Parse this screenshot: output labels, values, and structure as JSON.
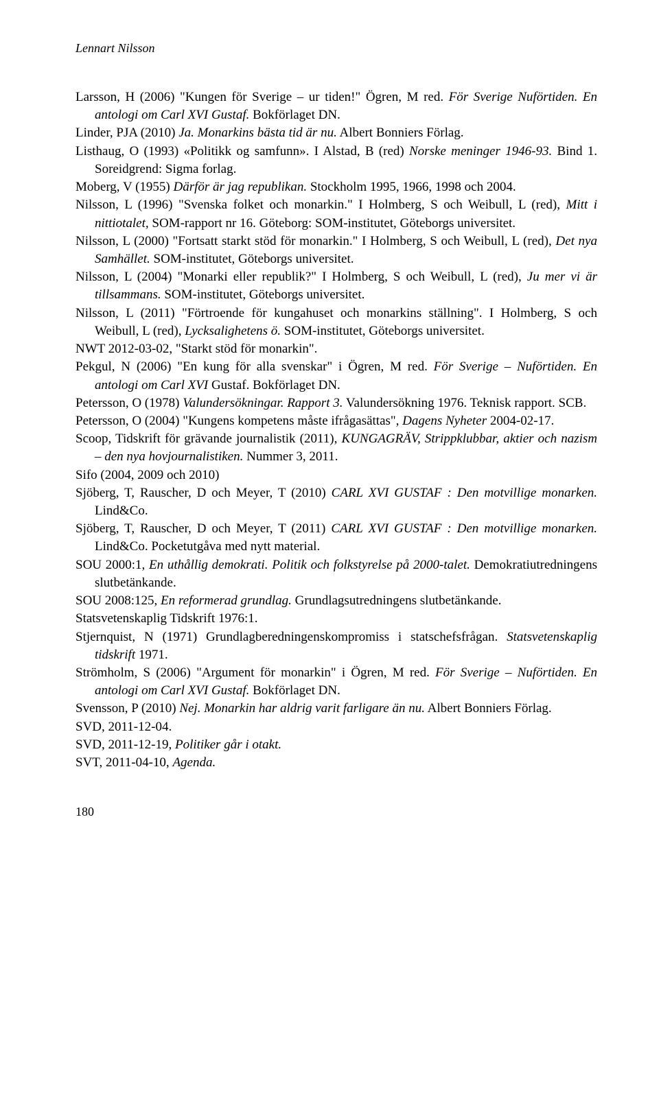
{
  "running_head": "Lennart Nilsson",
  "page_number": "180",
  "refs": [
    "Larsson, H (2006) \"Kungen för Sverige – ur tiden!\" Ögren, M red. <em>För Sverige Nuförtiden. En antologi om Carl XVI Gustaf.</em> Bokförlaget DN.",
    "Linder, PJA (2010) <em>Ja. Monarkins bästa tid är nu.</em> Albert Bonniers Förlag.",
    "Listhaug, O (1993) «Politikk og samfunn». I Alstad, B (red) <em>Norske meninger 1946-93.</em> Bind 1. Soreidgrend: Sigma forlag.",
    "Moberg, V (1955) <em>Därför är jag republikan.</em> Stockholm 1995, 1966, 1998 och 2004.",
    "Nilsson, L (1996) \"Svenska folket och monarkin.\" I Holmberg, S och Weibull, L (red), <em>Mitt i nittiotalet,</em> SOM-rapport nr 16. Göteborg: SOM-institutet, Göteborgs universitet.",
    "Nilsson, L (2000) \"Fortsatt starkt stöd för monarkin.\" I Holmberg, S och Weibull, L (red), <em>Det nya Samhället.</em> SOM-institutet, Göteborgs universitet.",
    "Nilsson, L (2004) \"Monarki eller republik?\" I Holmberg, S och Weibull, L (red), <em>Ju mer vi är tillsammans.</em> SOM-institutet, Göteborgs universitet.",
    "Nilsson, L (2011) \"Förtroende för kungahuset och monarkins ställning\". I Holmberg, S och Weibull, L (red), <em>Lycksalighetens ö.</em> SOM-institutet, Göteborgs universitet.",
    "NWT 2012-03-02, \"Starkt stöd för monarkin\".",
    "Pekgul, N (2006) \"En kung för alla svenskar\" i Ögren, M red. <em>För Sverige – Nuförtiden. En antologi om Carl XVI</em> Gustaf. Bokförlaget DN.",
    "Petersson, O (1978) <em>Valundersökningar. Rapport 3.</em> Valundersökning 1976. Teknisk rapport. SCB.",
    "Petersson, O (2004) \"Kungens kompetens måste ifrågasättas\", <em>Dagens Nyheter</em> 2004-02-17.",
    "Scoop, Tidskrift för grävande journalistik (2011), <em>KUNGAGRÄV, Strippklubbar, aktier och nazism – den nya hovjournalistiken.</em> Nummer 3, 2011.",
    "Sifo (2004, 2009 och 2010)",
    "Sjöberg, T, Rauscher, D och Meyer, T (2010) <em>CARL XVI GUSTAF : Den motvillige monarken.</em> Lind&Co.",
    "Sjöberg, T, Rauscher, D och Meyer, T (2011) <em>CARL XVI GUSTAF : Den motvillige monarken.</em> Lind&Co. Pocketutgåva med nytt material.",
    "SOU 2000:1, <em>En uthållig demokrati. Politik och folkstyrelse på 2000-talet.</em> Demokratiutredningens slutbetänkande.",
    "SOU 2008:125, <em>En reformerad grundlag.</em> Grundlagsutredningens slutbetänkande.",
    "Statsvetenskaplig Tidskrift 1976:1.",
    "Stjernquist, N (1971) Grundlagberedningenskompromiss i statschefsfrågan. <em>Statsvetenskaplig tidskrift</em> 1971.",
    "Strömholm, S (2006) \"Argument för monarkin\" i Ögren, M red. <em>För Sverige – Nuförtiden. En antologi om Carl XVI Gustaf.</em> Bokförlaget DN.",
    "Svensson, P (2010) <em>Nej. Monarkin har aldrig varit farligare än nu.</em> Albert Bonniers Förlag.",
    "SVD, 2011-12-04.",
    "SVD, 2011-12-19, <em>Politiker går i otakt.</em>",
    "SVT, 2011-04-10, <em>Agenda.</em>"
  ]
}
